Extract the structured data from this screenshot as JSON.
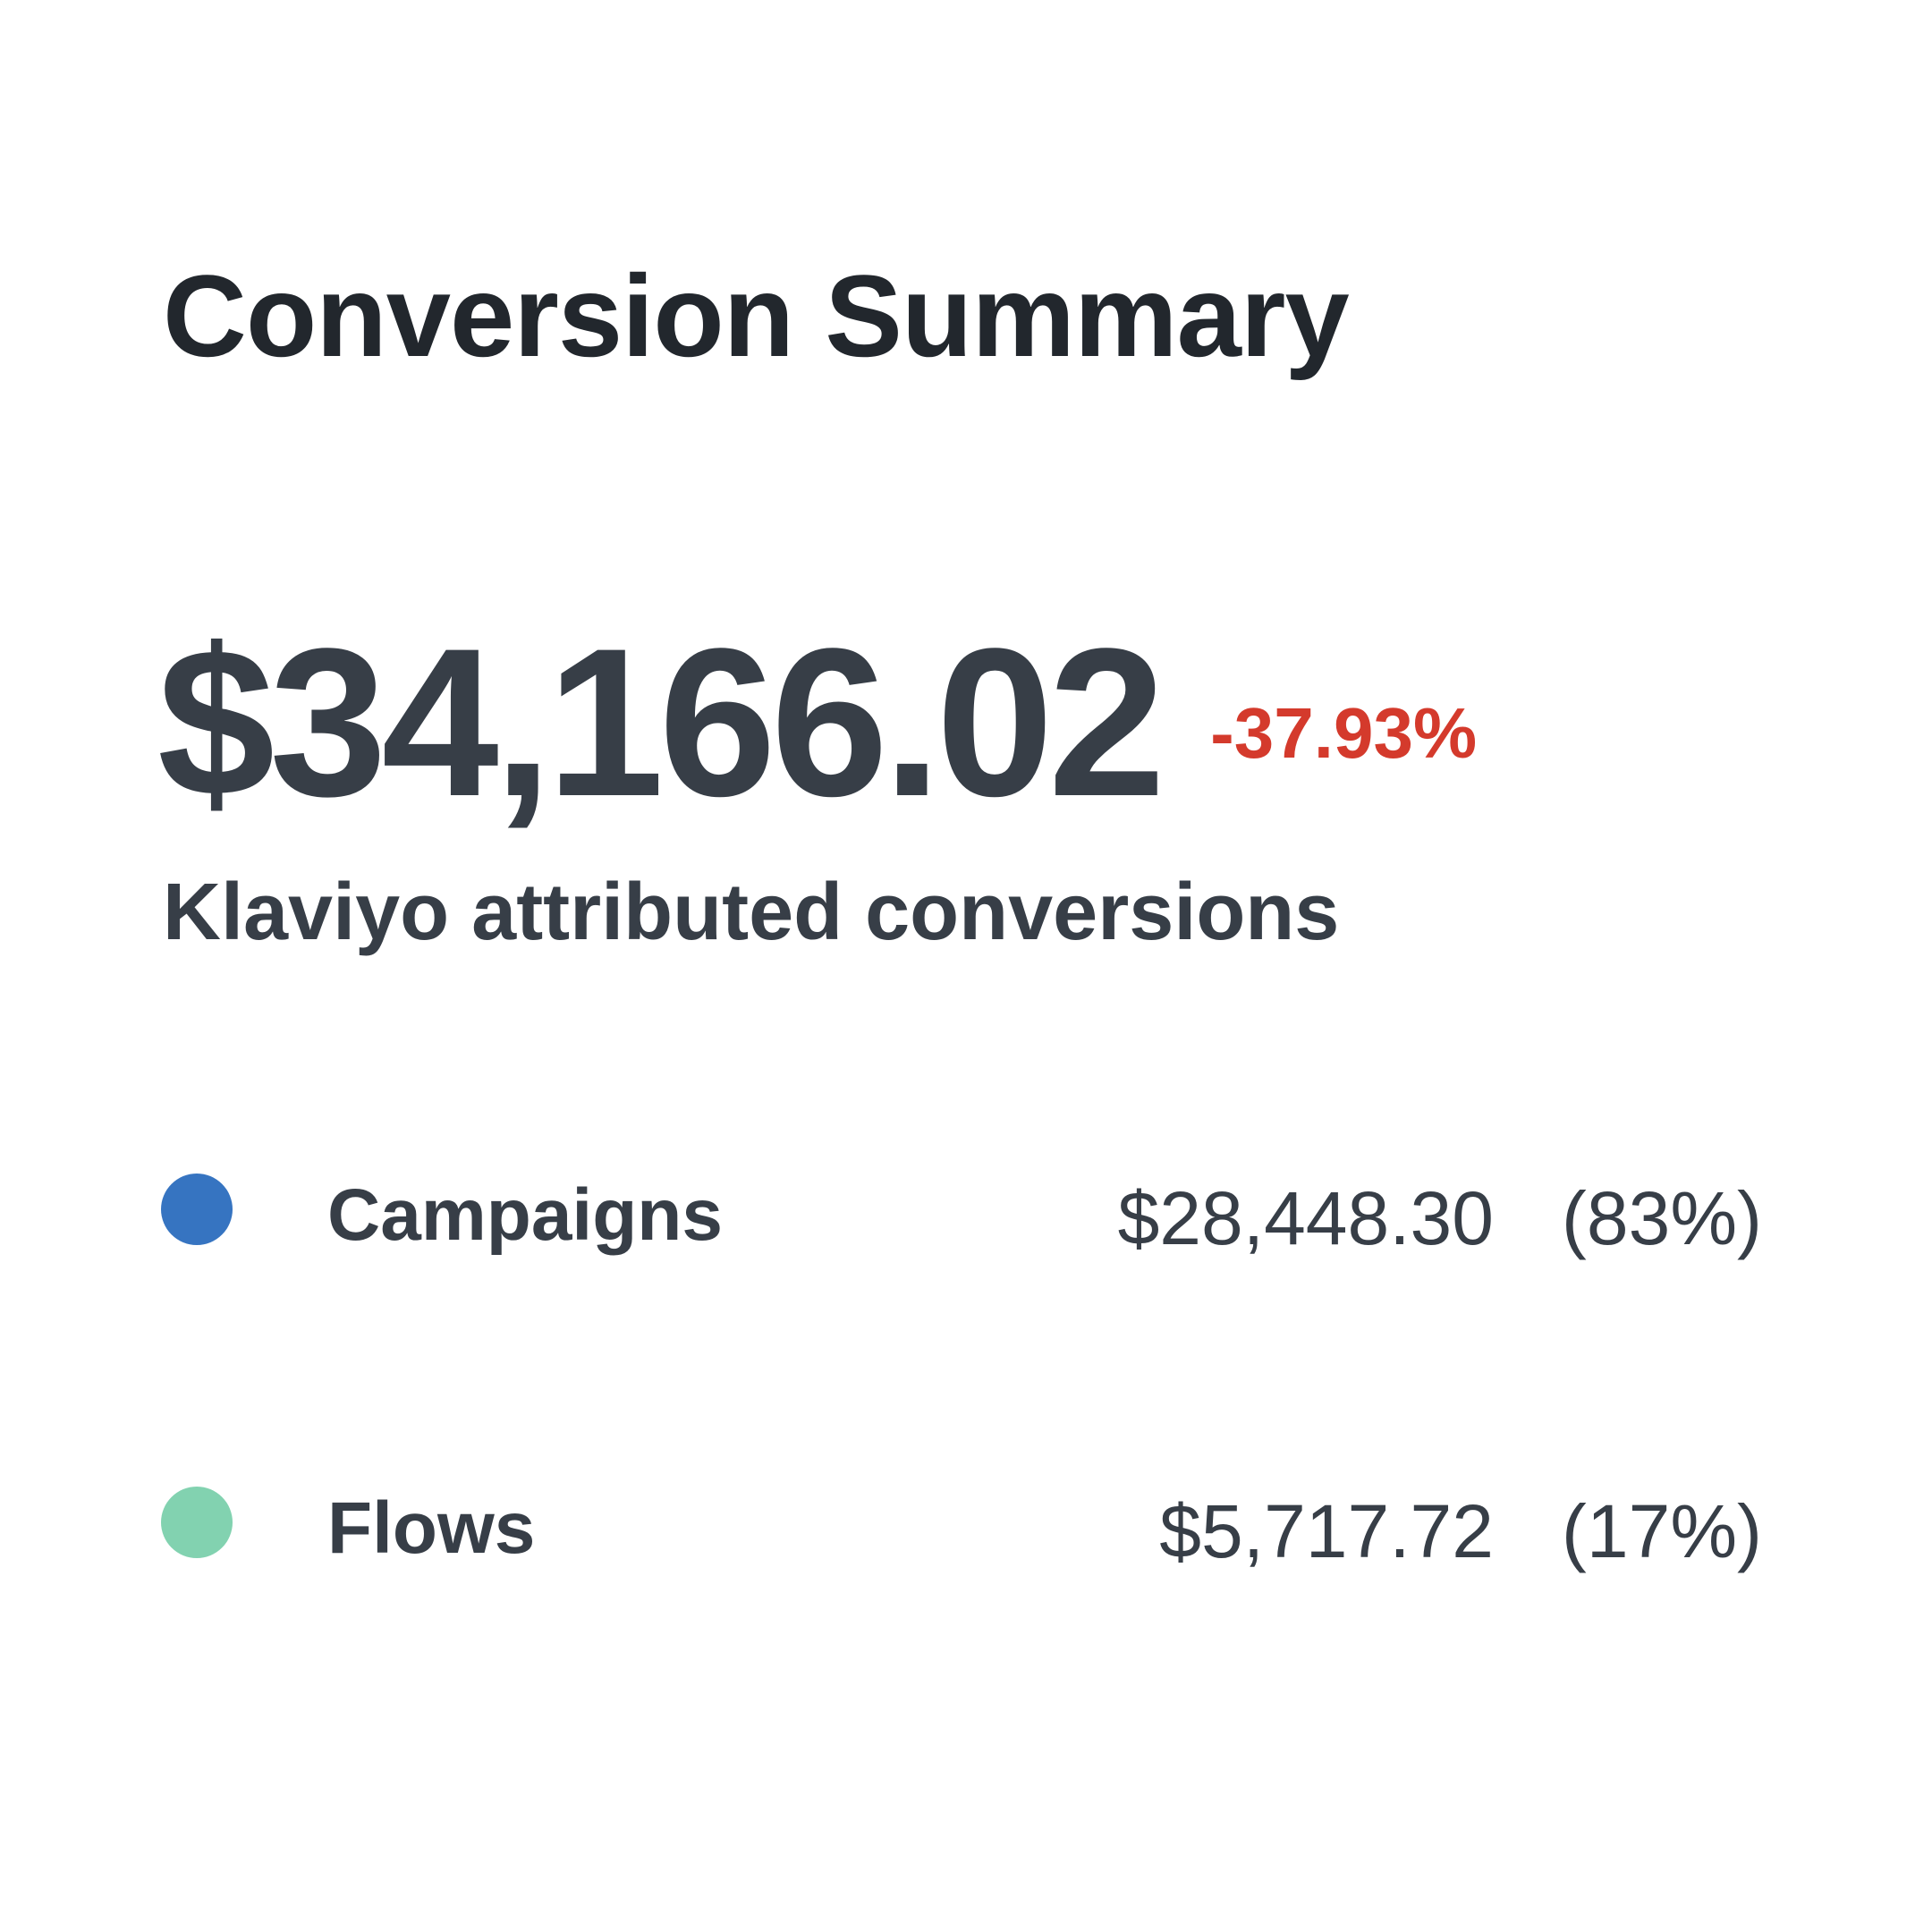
{
  "summary": {
    "title": "Conversion Summary",
    "total_value": "$34,166.02",
    "change": "-37.93%",
    "change_color": "#d43a2c",
    "subtitle": "Klaviyo attributed conversions"
  },
  "breakdown": [
    {
      "label": "Campaigns",
      "amount": "$28,448.30",
      "percent": "(83%)",
      "color": "#3674c1",
      "icon": "dot-icon"
    },
    {
      "label": "Flows",
      "amount": "$5,717.72",
      "percent": "(17%)",
      "color": "#82d2b0",
      "icon": "dot-icon"
    }
  ]
}
